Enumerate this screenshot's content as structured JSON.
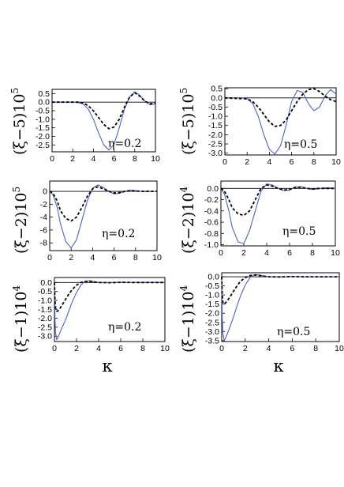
{
  "figure": {
    "x_axis_label": "κ",
    "rows": [
      {
        "ylabel_left": "(ξ−5)10",
        "ylabel_left_exp": "5",
        "ylabel_right": "(ξ−5)10",
        "ylabel_right_exp": "5"
      },
      {
        "ylabel_left": "(ξ−2)10",
        "ylabel_left_exp": "5",
        "ylabel_right": "(ξ−2)10",
        "ylabel_right_exp": "4"
      },
      {
        "ylabel_left": "(ξ−1)10",
        "ylabel_left_exp": "4",
        "ylabel_right": "(ξ−1)10",
        "ylabel_right_exp": "4"
      }
    ]
  },
  "chart_data": [
    {
      "type": "line",
      "annotation": "η=0.2",
      "xlim": [
        0,
        10
      ],
      "ylim": [
        -2.9,
        0.75
      ],
      "xticks": [
        0,
        2,
        4,
        6,
        8,
        10
      ],
      "yticks": [
        0.5,
        0.0,
        -0.5,
        -1.0,
        -1.5,
        -2.0,
        -2.5
      ],
      "ytick_labels": [
        "0.5",
        "0.0",
        "-0.5",
        "-1.0",
        "-1.5",
        "-2.0",
        "-2.5"
      ],
      "reference_line_y": 0,
      "series": [
        {
          "style": "solid",
          "color": "#4a63c9",
          "x": [
            0,
            2,
            2.5,
            3,
            3.5,
            4,
            4.5,
            5,
            5.5,
            6,
            6.5,
            7,
            7.5,
            8,
            8.5,
            9,
            9.5,
            10
          ],
          "y": [
            0,
            0,
            -0.02,
            -0.1,
            -0.4,
            -1.0,
            -1.8,
            -2.5,
            -2.8,
            -2.45,
            -1.5,
            -0.4,
            0.3,
            0.6,
            0.4,
            0.05,
            -0.15,
            -0.1
          ]
        },
        {
          "style": "dashed",
          "color": "#000000",
          "x": [
            0,
            2,
            2.5,
            3,
            3.5,
            4,
            4.5,
            5,
            5.5,
            6,
            6.5,
            7,
            7.5,
            8,
            8.5,
            9,
            9.5,
            10
          ],
          "y": [
            0,
            0,
            0,
            -0.05,
            -0.2,
            -0.5,
            -0.9,
            -1.3,
            -1.55,
            -1.45,
            -1.0,
            -0.3,
            0.3,
            0.55,
            0.35,
            0.05,
            -0.1,
            -0.05
          ]
        }
      ]
    },
    {
      "type": "line",
      "annotation": "η=0.5",
      "xlim": [
        0,
        10
      ],
      "ylim": [
        -3.1,
        0.55
      ],
      "xticks": [
        0,
        2,
        4,
        6,
        8,
        10
      ],
      "yticks": [
        0.5,
        0.0,
        -0.5,
        -1.0,
        -1.5,
        -2.0,
        -2.5,
        -3.0
      ],
      "ytick_labels": [
        "0.5",
        "0.0",
        "-0.5",
        "-1.0",
        "-1.5",
        "-2.0",
        "-2.5",
        "-3.0"
      ],
      "reference_line_y": 0,
      "series": [
        {
          "style": "solid",
          "color": "#4a63c9",
          "x": [
            0,
            1.5,
            2,
            2.5,
            3,
            3.5,
            4,
            4.5,
            5,
            5.5,
            6,
            6.5,
            7,
            7.5,
            8,
            8.5,
            9,
            9.5,
            10
          ],
          "y": [
            0,
            0,
            -0.05,
            -0.3,
            -1.0,
            -2.0,
            -2.8,
            -3.05,
            -2.6,
            -1.5,
            -0.2,
            0.4,
            0.3,
            -0.3,
            -0.7,
            -0.5,
            0.1,
            0.45,
            0.2
          ]
        },
        {
          "style": "dashed",
          "color": "#000000",
          "x": [
            0,
            2,
            2.5,
            3,
            3.5,
            4,
            4.5,
            5,
            5.5,
            6,
            6.5,
            7,
            7.5,
            8,
            8.5,
            9,
            9.5,
            10
          ],
          "y": [
            0,
            -0.05,
            -0.2,
            -0.5,
            -0.9,
            -1.3,
            -1.55,
            -1.5,
            -1.2,
            -0.7,
            -0.2,
            0.2,
            0.45,
            0.5,
            0.35,
            0.1,
            -0.1,
            -0.2
          ]
        }
      ]
    },
    {
      "type": "line",
      "annotation": "η=0.2",
      "xlim": [
        0,
        10
      ],
      "ylim": [
        -9.2,
        1.6
      ],
      "xticks": [
        0,
        2,
        4,
        6,
        8,
        10
      ],
      "yticks": [
        0,
        -2,
        -4,
        -6,
        -8
      ],
      "ytick_labels": [
        "0",
        "-2",
        "-4",
        "-6",
        "-8"
      ],
      "reference_line_y": 0,
      "series": [
        {
          "style": "solid",
          "color": "#4a63c9",
          "x": [
            0,
            0.3,
            0.7,
            1,
            1.5,
            2,
            2.5,
            3,
            3.5,
            4,
            4.5,
            5,
            5.5,
            6,
            6.5,
            7,
            7.5,
            8,
            8.5,
            9,
            9.5,
            10
          ],
          "y": [
            0,
            -0.5,
            -2.5,
            -5.0,
            -7.8,
            -8.8,
            -7.5,
            -4.5,
            -1.5,
            0.5,
            1.0,
            0.6,
            0,
            -0.4,
            -0.3,
            0,
            0.2,
            0.1,
            0,
            -0.05,
            0,
            0
          ]
        },
        {
          "style": "dashed",
          "color": "#000000",
          "x": [
            0,
            0.3,
            0.7,
            1,
            1.5,
            2,
            2.5,
            3,
            3.5,
            4,
            4.5,
            5,
            5.5,
            6,
            6.5,
            7,
            7.5,
            8,
            8.5,
            9,
            9.5,
            10
          ],
          "y": [
            0,
            -0.3,
            -1.5,
            -3.0,
            -4.2,
            -4.6,
            -4.0,
            -2.5,
            -0.8,
            0.4,
            0.7,
            0.4,
            0,
            -0.25,
            -0.2,
            0,
            0.1,
            0.05,
            0,
            0,
            0,
            0
          ]
        }
      ]
    },
    {
      "type": "line",
      "annotation": "η=0.5",
      "xlim": [
        0,
        10
      ],
      "ylim": [
        -1.02,
        0.13
      ],
      "xticks": [
        0,
        2,
        4,
        6,
        8,
        10
      ],
      "yticks": [
        0.0,
        -0.2,
        -0.4,
        -0.6,
        -0.8,
        -1.0
      ],
      "ytick_labels": [
        "0.0",
        "-0.2",
        "-0.4",
        "-0.6",
        "-0.8",
        "-1.0"
      ],
      "reference_line_y": 0,
      "series": [
        {
          "style": "solid",
          "color": "#4a63c9",
          "x": [
            0,
            0.3,
            0.7,
            1,
            1.5,
            2,
            2.5,
            3,
            3.5,
            4,
            4.5,
            5,
            5.5,
            6,
            6.5,
            7,
            7.5,
            8,
            8.5,
            9,
            9.5,
            10
          ],
          "y": [
            0,
            -0.1,
            -0.4,
            -0.7,
            -0.95,
            -0.98,
            -0.75,
            -0.4,
            -0.05,
            0.08,
            0.06,
            0,
            -0.04,
            -0.03,
            0.02,
            0.03,
            0,
            -0.02,
            -0.01,
            0.01,
            0.01,
            0
          ]
        },
        {
          "style": "dashed",
          "color": "#000000",
          "x": [
            0,
            0.3,
            0.7,
            1,
            1.5,
            2,
            2.5,
            3,
            3.5,
            4,
            4.5,
            5,
            5.5,
            6,
            6.5,
            7,
            7.5,
            8,
            8.5,
            9,
            9.5,
            10
          ],
          "y": [
            0,
            -0.05,
            -0.2,
            -0.35,
            -0.45,
            -0.48,
            -0.4,
            -0.2,
            0,
            0.06,
            0.04,
            0,
            -0.03,
            -0.02,
            0.02,
            0.02,
            0,
            -0.01,
            0,
            0,
            0,
            0
          ]
        }
      ]
    },
    {
      "type": "line",
      "annotation": "η=0.2",
      "xlim": [
        0,
        10
      ],
      "ylim": [
        -3.3,
        0.28
      ],
      "xticks": [
        0,
        2,
        4,
        6,
        8,
        10
      ],
      "yticks": [
        0.0,
        -0.5,
        -1.0,
        -1.5,
        -2.0,
        -2.5,
        -3.0
      ],
      "ytick_labels": [
        "0.0",
        "-0.5",
        "-1.0",
        "-1.5",
        "-2.0",
        "-2.5",
        "-3.0"
      ],
      "reference_line_y": 0,
      "series": [
        {
          "style": "solid",
          "color": "#4a63c9",
          "x": [
            0,
            0.05,
            0.1,
            0.2,
            0.3,
            0.5,
            0.7,
            1,
            1.3,
            1.6,
            2,
            2.4,
            2.8,
            3.2,
            3.6,
            4,
            5,
            6,
            7,
            8,
            9,
            10
          ],
          "y": [
            0,
            -2.0,
            -2.8,
            -3.2,
            -3.1,
            -2.8,
            -2.5,
            -2.1,
            -1.6,
            -1.1,
            -0.55,
            -0.15,
            0.08,
            0.1,
            0.05,
            0.0,
            -0.01,
            0.01,
            0,
            0,
            0,
            0
          ]
        },
        {
          "style": "dashed",
          "color": "#000000",
          "x": [
            0,
            0.05,
            0.1,
            0.2,
            0.3,
            0.5,
            0.7,
            1,
            1.3,
            1.6,
            2,
            2.4,
            2.8,
            3.2,
            3.6,
            4,
            5,
            6,
            7,
            8,
            9,
            10
          ],
          "y": [
            0,
            -1.0,
            -1.4,
            -1.6,
            -1.6,
            -1.45,
            -1.25,
            -0.95,
            -0.65,
            -0.4,
            -0.15,
            0.0,
            0.06,
            0.06,
            0.03,
            0.0,
            -0.01,
            0.01,
            0,
            0,
            0,
            0
          ]
        }
      ]
    },
    {
      "type": "line",
      "annotation": "η=0.5",
      "xlim": [
        0,
        10
      ],
      "ylim": [
        -3.55,
        0.22
      ],
      "xticks": [
        0,
        2,
        4,
        6,
        8,
        10
      ],
      "yticks": [
        0.0,
        -0.5,
        -1.0,
        -1.5,
        -2.0,
        -2.5,
        -3.0,
        -3.5
      ],
      "ytick_labels": [
        "0.0",
        "-0.5",
        "-1.0",
        "-1.5",
        "-2.0",
        "-2.5",
        "-3.0",
        "-3.5"
      ],
      "reference_line_y": 0,
      "series": [
        {
          "style": "solid",
          "color": "#4a63c9",
          "x": [
            0,
            0.05,
            0.1,
            0.2,
            0.3,
            0.5,
            0.7,
            1,
            1.3,
            1.6,
            2,
            2.4,
            2.8,
            3.2,
            3.6,
            4,
            5,
            6,
            7,
            8,
            9,
            10
          ],
          "y": [
            0,
            -2.3,
            -3.1,
            -3.45,
            -3.4,
            -3.1,
            -2.75,
            -2.2,
            -1.6,
            -1.05,
            -0.45,
            -0.05,
            0.12,
            0.1,
            0.04,
            0.0,
            -0.01,
            0.01,
            0,
            0,
            0,
            0
          ]
        },
        {
          "style": "dashed",
          "color": "#000000",
          "x": [
            0,
            0.05,
            0.1,
            0.2,
            0.3,
            0.5,
            0.7,
            1,
            1.3,
            1.6,
            2,
            2.4,
            2.8,
            3.2,
            3.6,
            4,
            5,
            6,
            7,
            8,
            9,
            10
          ],
          "y": [
            0,
            -1.0,
            -1.4,
            -1.5,
            -1.45,
            -1.3,
            -1.1,
            -0.8,
            -0.5,
            -0.25,
            -0.05,
            0.07,
            0.1,
            0.07,
            0.03,
            0.0,
            -0.01,
            0.01,
            0,
            0,
            0,
            0
          ]
        }
      ]
    }
  ]
}
